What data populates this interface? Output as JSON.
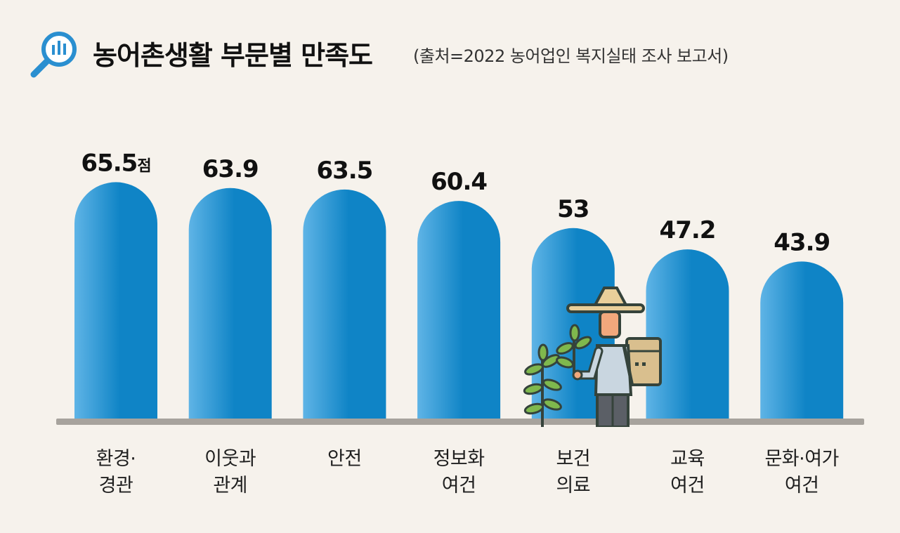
{
  "header": {
    "title": "농어촌생활 부문별 만족도",
    "subtitle": "(출처=2022 농어업인 복지실태 조사 보고서)"
  },
  "colors": {
    "bar_light": "#5fb4e6",
    "bar_dark": "#0f84c6",
    "baseline": "#a7a39d",
    "background": "#f6f2ec"
  },
  "icons": {
    "title": "magnifier-chart-icon",
    "illustration": "farmer-with-plants-illustration"
  },
  "chart_data": {
    "type": "bar",
    "categories": [
      "환경·\n경관",
      "이웃과\n관계",
      "안전",
      "정보화\n여건",
      "보건\n의료",
      "교육\n여건",
      "문화·여가\n여건"
    ],
    "values": [
      65.5,
      63.9,
      63.5,
      60.4,
      53,
      47.2,
      43.9
    ],
    "value_labels": [
      "65.5",
      "63.9",
      "63.5",
      "60.4",
      "53",
      "47.2",
      "43.9"
    ],
    "unit": "점",
    "title": "농어촌생활 부문별 만족도",
    "xlabel": "",
    "ylabel": "",
    "ylim": [
      0,
      70
    ],
    "grid": false,
    "legend": "none"
  }
}
